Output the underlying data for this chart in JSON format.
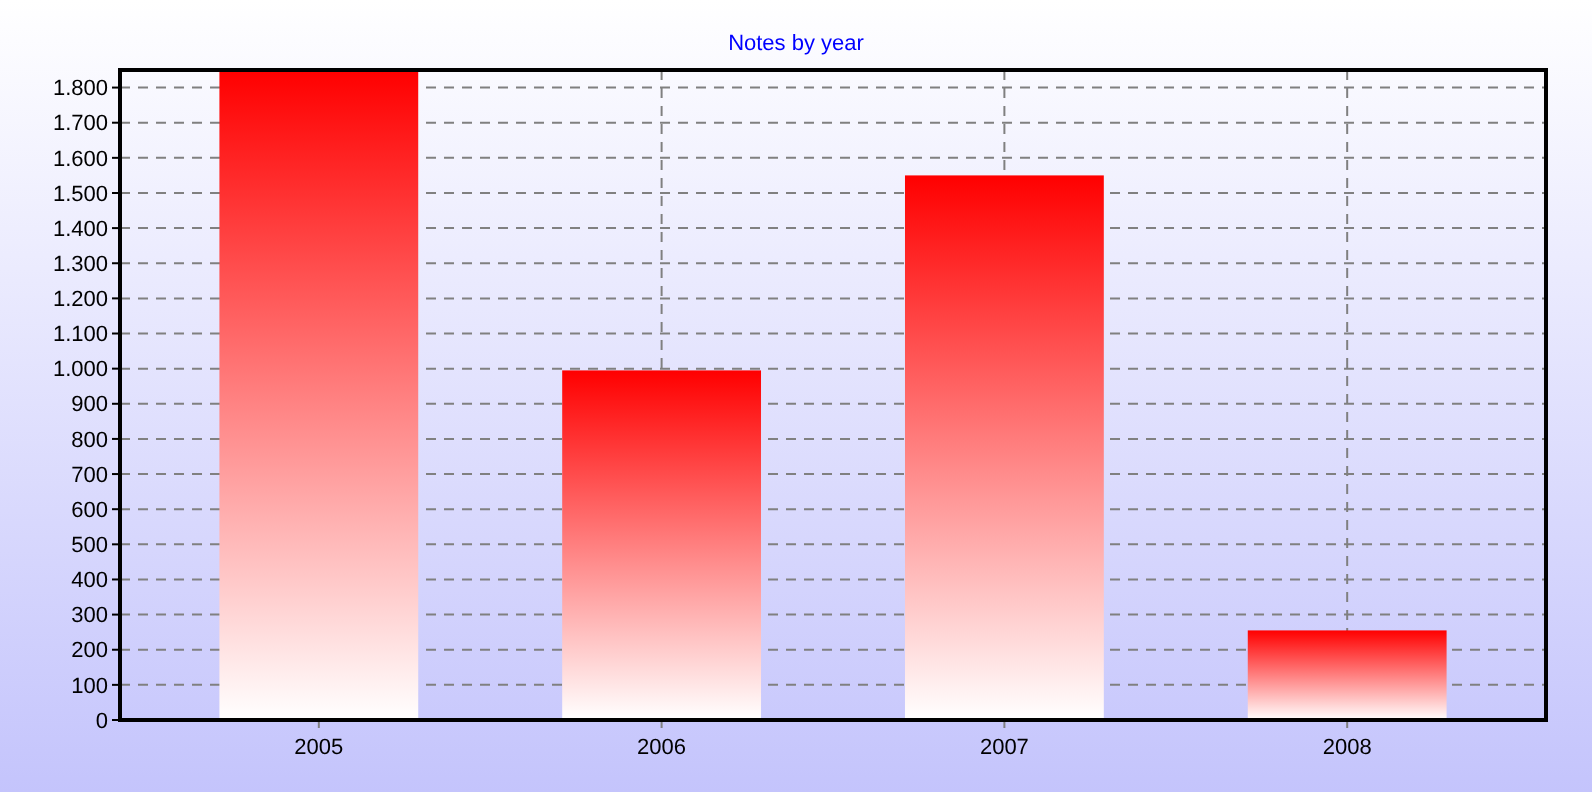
{
  "chart_data": {
    "type": "bar",
    "title": "Notes by year",
    "categories": [
      "2005",
      "2006",
      "2007",
      "2008"
    ],
    "values": [
      1850,
      995,
      1550,
      255
    ],
    "color": "#ff0000",
    "ylim": [
      0,
      1850
    ],
    "yticks": [
      0,
      100,
      200,
      300,
      400,
      500,
      600,
      700,
      800,
      900,
      {
        "value": 1000,
        "label": "1.000"
      },
      {
        "value": 1100,
        "label": "1.100"
      },
      {
        "value": 1200,
        "label": "1.200"
      },
      {
        "value": 1300,
        "label": "1.300"
      },
      {
        "value": 1400,
        "label": "1.400"
      },
      {
        "value": 1500,
        "label": "1.500"
      },
      {
        "value": 1600,
        "label": "1.600"
      },
      {
        "value": 1700,
        "label": "1.700"
      },
      {
        "value": 1800,
        "label": "1.800"
      }
    ],
    "grid": true
  }
}
